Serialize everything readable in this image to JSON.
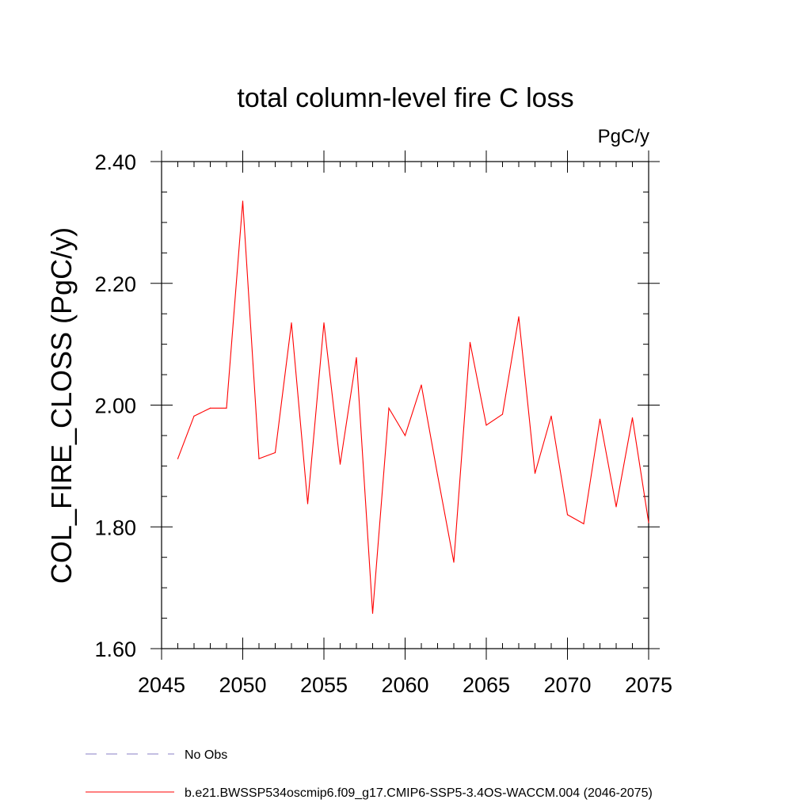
{
  "chart_data": {
    "type": "line",
    "title": "total column-level fire C loss",
    "units": "PgC/y",
    "ylabel": "COL_FIRE_CLOSS  (PgC/y)",
    "xlabel": "",
    "xlim": [
      2045,
      2075
    ],
    "ylim": [
      1.6,
      2.4
    ],
    "x_ticks": [
      2045,
      2050,
      2055,
      2060,
      2065,
      2070,
      2075
    ],
    "x_minor_step": 1,
    "y_ticks": [
      1.6,
      1.8,
      2.0,
      2.2,
      2.4
    ],
    "y_tick_labels": [
      "1.60",
      "1.80",
      "2.00",
      "2.20",
      "2.40"
    ],
    "y_minor_step": 0.05,
    "grid": false,
    "series": [
      {
        "name": "b.e21.BWSSP534oscmip6.f09_g17.CMIP6-SSP5-3.4OS-WACCM.004 (2046-2075)",
        "color": "#ff0000",
        "dash": "solid",
        "x": [
          2046,
          2047,
          2048,
          2049,
          2050,
          2051,
          2052,
          2053,
          2054,
          2055,
          2056,
          2057,
          2058,
          2059,
          2060,
          2061,
          2062,
          2063,
          2064,
          2065,
          2066,
          2067,
          2068,
          2069,
          2070,
          2071,
          2072,
          2073,
          2074,
          2075
        ],
        "values": [
          1.912,
          1.982,
          1.995,
          1.995,
          2.335,
          1.912,
          1.922,
          2.135,
          1.838,
          2.135,
          1.903,
          2.078,
          1.658,
          1.995,
          1.95,
          2.033,
          1.885,
          1.742,
          2.103,
          1.967,
          1.985,
          2.145,
          1.888,
          1.982,
          1.82,
          1.805,
          1.977,
          1.833,
          1.979,
          1.807
        ]
      }
    ],
    "legend": {
      "placement": "bottom-left",
      "entries": [
        {
          "label": "No Obs",
          "color": "#8a7fc4",
          "dash": "dashed"
        },
        {
          "label": "b.e21.BWSSP534oscmip6.f09_g17.CMIP6-SSP5-3.4OS-WACCM.004 (2046-2075)",
          "color": "#ff0000",
          "dash": "solid"
        }
      ]
    }
  }
}
